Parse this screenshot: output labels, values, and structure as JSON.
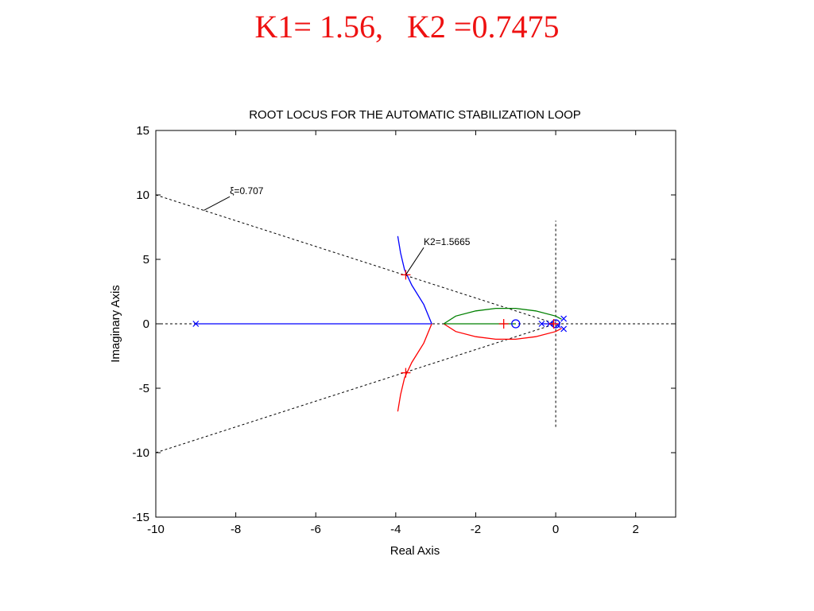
{
  "slide_title": "K1= 1.56,   K2 =0.7475",
  "chart_data": {
    "type": "line",
    "title": "ROOT LOCUS FOR THE AUTOMATIC STABILIZATION LOOP",
    "xlabel": "Real Axis",
    "ylabel": "Imaginary Axis",
    "xlim": [
      -10,
      3
    ],
    "ylim": [
      -15,
      15
    ],
    "x_ticks": [
      -10,
      -8,
      -6,
      -4,
      -2,
      0,
      2
    ],
    "y_ticks": [
      15,
      10,
      5,
      0,
      -5,
      -10,
      -15
    ],
    "grid": false,
    "annotations": [
      {
        "label": "ξ=0.707",
        "point": [
          -8.8,
          8.8
        ],
        "text_at": [
          -8.15,
          10.05
        ]
      },
      {
        "label": "K2=1.5665",
        "point": [
          -3.75,
          3.8
        ],
        "text_at": [
          -3.3,
          6.1
        ]
      }
    ],
    "series": [
      {
        "color": "#0000ff",
        "points": [
          [
            -9.0,
            0
          ],
          [
            -3.1,
            0
          ]
        ]
      },
      {
        "color": "#0000ff",
        "points": [
          [
            -3.1,
            0
          ],
          [
            -3.3,
            1.5
          ],
          [
            -3.6,
            3.0
          ],
          [
            -3.78,
            4.2
          ],
          [
            -3.88,
            5.5
          ],
          [
            -3.95,
            6.8
          ]
        ]
      },
      {
        "color": "#ff0000",
        "points": [
          [
            -3.1,
            0
          ],
          [
            -3.3,
            -1.5
          ],
          [
            -3.6,
            -3.0
          ],
          [
            -3.78,
            -4.2
          ],
          [
            -3.88,
            -5.5
          ],
          [
            -3.95,
            -6.8
          ]
        ]
      },
      {
        "color": "#008000",
        "points": [
          [
            -2.8,
            0
          ],
          [
            -2.5,
            0.6
          ],
          [
            -2.0,
            1.0
          ],
          [
            -1.5,
            1.2
          ],
          [
            -1.0,
            1.2
          ],
          [
            -0.5,
            1.0
          ],
          [
            0.0,
            0.6
          ],
          [
            0.15,
            0.35
          ]
        ]
      },
      {
        "color": "#ff0000",
        "points": [
          [
            -2.8,
            0
          ],
          [
            -2.5,
            -0.6
          ],
          [
            -2.0,
            -1.0
          ],
          [
            -1.5,
            -1.2
          ],
          [
            -1.0,
            -1.2
          ],
          [
            -0.5,
            -1.0
          ],
          [
            0.0,
            -0.6
          ],
          [
            0.15,
            -0.35
          ]
        ]
      },
      {
        "color": "#008000",
        "points": [
          [
            -2.8,
            0
          ],
          [
            -1.0,
            0
          ]
        ]
      },
      {
        "color": "#0000ff",
        "points": [
          [
            -0.35,
            0
          ],
          [
            -0.05,
            0
          ]
        ]
      }
    ],
    "damping_lines": {
      "color": "#000000",
      "points_upper": [
        [
          -10,
          10
        ],
        [
          0,
          0
        ]
      ],
      "points_lower": [
        [
          -10,
          -10
        ],
        [
          0,
          0
        ]
      ]
    },
    "reference_lines": {
      "color": "#000000",
      "horizontal": [
        [
          -10,
          0
        ],
        [
          3,
          0
        ]
      ],
      "vertical": [
        [
          0,
          -8
        ],
        [
          0,
          8
        ]
      ]
    },
    "poles": [
      [
        -9.0,
        0
      ],
      [
        -0.35,
        0
      ],
      [
        -0.15,
        0
      ],
      [
        0.2,
        0.4
      ],
      [
        0.2,
        -0.4
      ],
      [
        0.05,
        -0.1
      ]
    ],
    "zeros": [
      [
        -1.0,
        0
      ],
      [
        0.0,
        0
      ]
    ],
    "gain_markers": [
      [
        -3.75,
        3.8
      ],
      [
        -3.75,
        -3.8
      ],
      [
        -1.3,
        0
      ],
      [
        -0.05,
        0
      ]
    ]
  }
}
